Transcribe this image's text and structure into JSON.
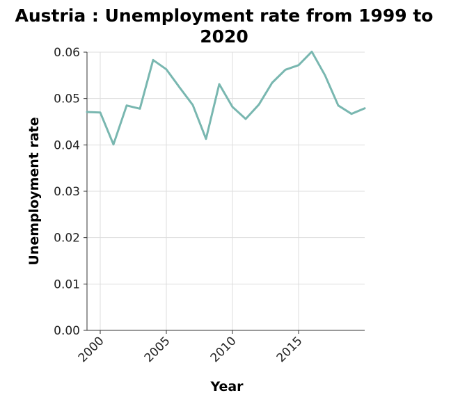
{
  "chart_data": {
    "type": "line",
    "title": "Austria : Unemployment rate from 1999 to 2020",
    "xlabel": "Year",
    "ylabel": "Unemployment rate",
    "xlim": [
      1999,
      2020
    ],
    "ylim": [
      0,
      0.06
    ],
    "xticks": [
      2000,
      2005,
      2010,
      2015
    ],
    "yticks": [
      "0.00",
      "0.01",
      "0.02",
      "0.03",
      "0.04",
      "0.05",
      "0.06"
    ],
    "grid": true,
    "legend": "none",
    "line_color": "#79b7b0",
    "series": [
      {
        "x": [
          1999,
          2000,
          2001,
          2002,
          2003,
          2004,
          2005,
          2006,
          2007,
          2008,
          2009,
          2010,
          2011,
          2012,
          2013,
          2014,
          2015,
          2016,
          2017,
          2018,
          2019,
          2020
        ],
        "values": [
          0.0471,
          0.047,
          0.0401,
          0.0485,
          0.0478,
          0.0583,
          0.0563,
          0.0524,
          0.0486,
          0.0413,
          0.0531,
          0.0482,
          0.0456,
          0.0487,
          0.0534,
          0.0562,
          0.0572,
          0.0601,
          0.055,
          0.0485,
          0.0467,
          0.0479
        ]
      }
    ]
  }
}
